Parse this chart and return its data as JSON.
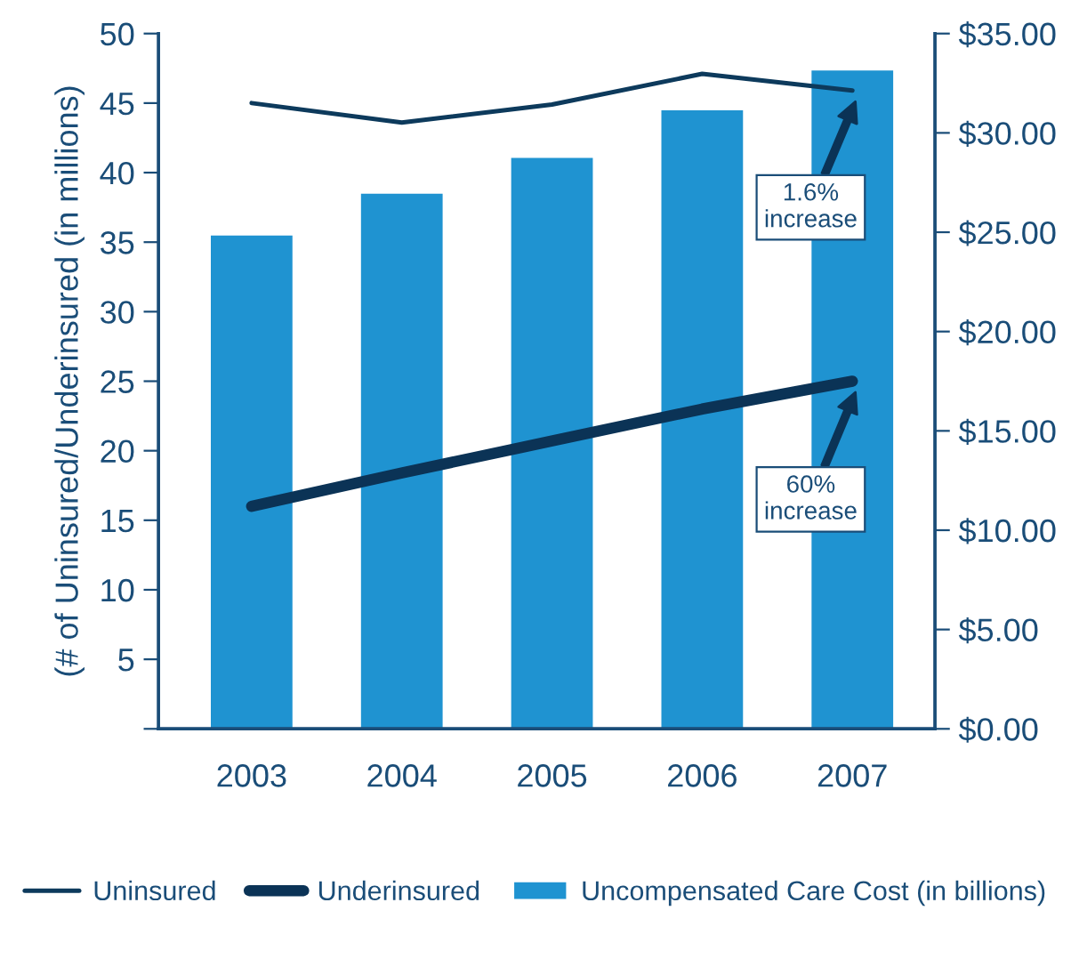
{
  "chart_data": {
    "type": "bar",
    "ylabel": "(# of Uninsured/Underinsured (in millions)",
    "categories": [
      "2003",
      "2004",
      "2005",
      "2006",
      "2007"
    ],
    "series": [
      {
        "name": "Uncompensated Care Cost (in billions)",
        "type": "bar",
        "axis": "y2",
        "color": "#1f93d1",
        "values": [
          24.9,
          27.0,
          28.8,
          31.2,
          33.2
        ]
      },
      {
        "name": "Uninsured",
        "type": "line",
        "color": "#0d3a5c",
        "values": [
          45.0,
          43.6,
          44.9,
          47.1,
          45.9
        ]
      },
      {
        "name": "Underinsured",
        "type": "line",
        "color": "#0b3356",
        "values": [
          16.0,
          18.4,
          20.7,
          23.0,
          25.0
        ]
      }
    ],
    "ylim": [
      0,
      50
    ],
    "yticks": [
      {
        "value": 0,
        "label": null
      },
      5,
      10,
      15,
      20,
      25,
      30,
      35,
      40,
      45,
      50
    ],
    "y2lim": [
      0,
      35
    ],
    "y2ticks": [
      {
        "value": 0,
        "label": "$0.00"
      },
      {
        "value": 5,
        "label": "$5.00"
      },
      {
        "value": 10,
        "label": "$10.00"
      },
      {
        "value": 15,
        "label": "$15.00"
      },
      {
        "value": 20,
        "label": "$20.00"
      },
      {
        "value": 25,
        "label": "$25.00"
      },
      {
        "value": 30,
        "label": "$30.00"
      },
      {
        "value": 35,
        "label": "$35.00"
      }
    ],
    "annotations": [
      "1.6%\nincrease",
      "60%\nincrease"
    ],
    "legend": "bottom",
    "grid": false
  }
}
